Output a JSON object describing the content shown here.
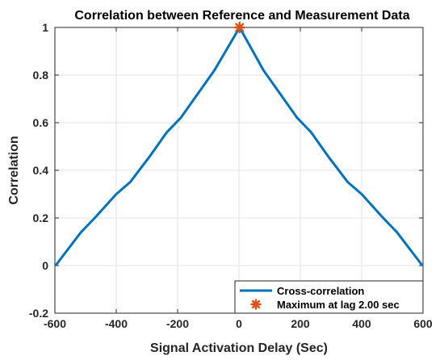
{
  "chart_data": {
    "type": "line",
    "title": "Correlation between Reference and Measurement Data",
    "xlabel": "Signal Activation Delay (Sec)",
    "ylabel": "Correlation",
    "xlim": [
      -600,
      600
    ],
    "ylim": [
      -0.2,
      1
    ],
    "x_ticks": [
      -600,
      -400,
      -200,
      0,
      200,
      400,
      600
    ],
    "x_tick_labels": [
      "-600",
      "-400",
      "-200",
      "0",
      "200",
      "400",
      "600"
    ],
    "y_ticks": [
      -0.2,
      0,
      0.2,
      0.4,
      0.6,
      0.8,
      1
    ],
    "y_tick_labels": [
      "-0.2",
      "0",
      "0.2",
      "0.4",
      "0.6",
      "0.8",
      "1"
    ],
    "grid": true,
    "legend_position": "bottom-right",
    "series": [
      {
        "name": "Cross-correlation",
        "color": "#0072BD",
        "x": [
          -598,
          -515,
          -470,
          -400,
          -355,
          -290,
          -235,
          -190,
          -135,
          -80,
          2,
          80,
          135,
          190,
          235,
          290,
          355,
          400,
          470,
          515,
          598
        ],
        "y": [
          0,
          0.14,
          0.2,
          0.3,
          0.35,
          0.46,
          0.56,
          0.62,
          0.72,
          0.82,
          1,
          0.82,
          0.72,
          0.62,
          0.56,
          0.46,
          0.35,
          0.3,
          0.2,
          0.14,
          0
        ]
      },
      {
        "name": "Maximum at lag 2.00 sec",
        "color": "#D95319",
        "marker": "asterisk",
        "x": [
          2
        ],
        "y": [
          1
        ]
      }
    ]
  }
}
